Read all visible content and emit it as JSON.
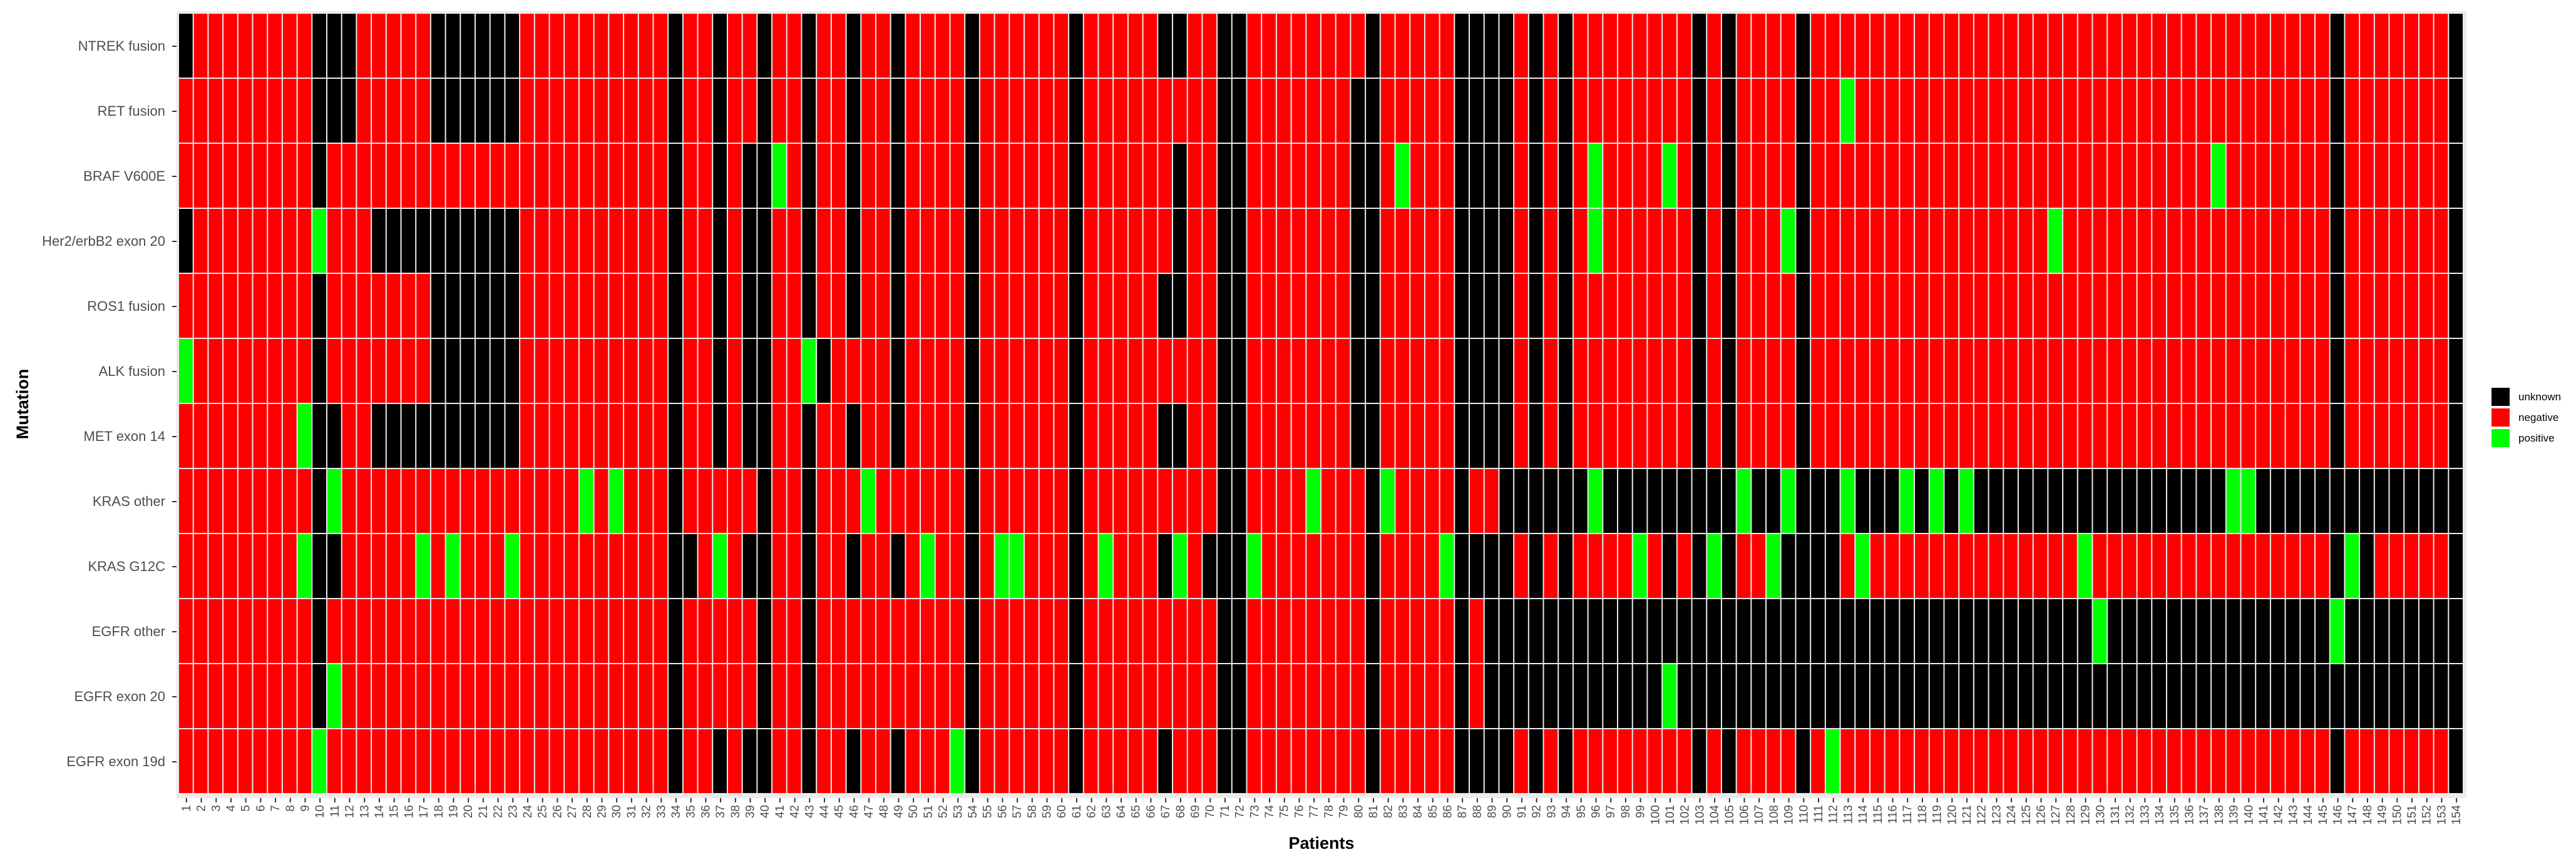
{
  "chart_data": {
    "type": "heatmap",
    "title": "",
    "xlabel": "Patients",
    "ylabel": "Mutation",
    "y_order_top_to_bottom": [
      "NTREK fusion",
      "RET fusion",
      "BRAF V600E",
      "Her2/erbB2 exon 20",
      "ROS1 fusion",
      "ALK fusion",
      "MET exon 14",
      "KRAS other",
      "KRAS  G12C",
      "EGFR other",
      "EGFR exon 20",
      "EGFR exon 19d"
    ],
    "x_categories": [
      "1",
      "2",
      "3",
      "4",
      "5",
      "6",
      "7",
      "8",
      "9",
      "10",
      "11",
      "12",
      "13",
      "14",
      "15",
      "16",
      "17",
      "18",
      "19",
      "20",
      "21",
      "22",
      "23",
      "24",
      "25",
      "26",
      "27",
      "28",
      "29",
      "30",
      "31",
      "32",
      "33",
      "34",
      "35",
      "36",
      "37",
      "38",
      "39",
      "40",
      "41",
      "42",
      "43",
      "44",
      "45",
      "46",
      "47",
      "48",
      "49",
      "50",
      "51",
      "52",
      "53",
      "54",
      "55",
      "56",
      "57",
      "58",
      "59",
      "60",
      "61",
      "62",
      "63",
      "64",
      "65",
      "66",
      "67",
      "68",
      "69",
      "70",
      "71",
      "72",
      "73",
      "74",
      "75",
      "76",
      "77",
      "78",
      "79",
      "80",
      "81",
      "82",
      "83",
      "84",
      "85",
      "86",
      "87",
      "88",
      "89",
      "90",
      "91",
      "92",
      "93",
      "94",
      "95",
      "96",
      "97",
      "98",
      "99",
      "100",
      "101",
      "102",
      "103",
      "104",
      "105",
      "106",
      "107",
      "108",
      "109",
      "110",
      "111",
      "112",
      "113",
      "114",
      "115",
      "116",
      "117",
      "118",
      "119",
      "120",
      "121",
      "122",
      "123",
      "124",
      "125",
      "126",
      "127",
      "128",
      "129",
      "130",
      "131",
      "132",
      "133",
      "134",
      "135",
      "136",
      "137",
      "138",
      "139",
      "140",
      "141",
      "142",
      "143",
      "144",
      "145",
      "146",
      "147",
      "148",
      "149",
      "150",
      "151",
      "152",
      "153",
      "154"
    ],
    "legend": [
      {
        "key": "unknown",
        "label": "unknown",
        "color": "#000000"
      },
      {
        "key": "negative",
        "label": "negative",
        "color": "#ff0000"
      },
      {
        "key": "positive",
        "label": "positive",
        "color": "#00ff00"
      }
    ],
    "legend_position": "right",
    "default_status": "negative",
    "column_unknown_all_rows": [
      10,
      34,
      40,
      43,
      54,
      61,
      71,
      72,
      81,
      87,
      90,
      92,
      94,
      103,
      105,
      110,
      146,
      154
    ],
    "exceptions": {
      "NTREK fusion": {
        "unknown": [
          1,
          11,
          12,
          18,
          19,
          20,
          21,
          22,
          23,
          37,
          46,
          49,
          67,
          68,
          88,
          89,
          90
        ],
        "positive": []
      },
      "RET fusion": {
        "unknown": [
          11,
          12,
          18,
          19,
          20,
          21,
          22,
          23,
          37,
          46,
          49,
          80,
          88,
          89,
          90
        ],
        "positive": [
          113
        ]
      },
      "BRAF V600E": {
        "unknown": [
          37,
          39,
          46,
          49,
          68,
          80,
          88,
          89,
          90
        ],
        "positive": [
          41,
          83,
          96,
          101,
          138
        ]
      },
      "Her2/erbB2 exon 20": {
        "unknown": [
          1,
          14,
          15,
          16,
          17,
          18,
          19,
          20,
          21,
          22,
          23,
          37,
          39,
          46,
          49,
          68,
          80,
          88,
          89
        ],
        "positive": [
          10,
          96,
          109,
          127
        ]
      },
      "ROS1 fusion": {
        "unknown": [
          18,
          19,
          20,
          21,
          22,
          23,
          37,
          39,
          46,
          49,
          67,
          68,
          80,
          88,
          89
        ],
        "positive": []
      },
      "ALK fusion": {
        "unknown": [
          18,
          19,
          20,
          21,
          22,
          23,
          37,
          39,
          44,
          49,
          80,
          88,
          89
        ],
        "positive": [
          1,
          43
        ]
      },
      "MET exon 14": {
        "unknown": [
          11,
          14,
          15,
          16,
          17,
          18,
          19,
          20,
          21,
          22,
          23,
          37,
          39,
          46,
          49,
          67,
          68,
          80,
          88,
          89
        ],
        "positive": [
          9
        ]
      },
      "KRAS other": {
        "unknown": "91-154",
        "positive": [
          11,
          28,
          30,
          47,
          77,
          82,
          96,
          106,
          109,
          113,
          117,
          119,
          121,
          139,
          140
        ]
      },
      "KRAS  G12C": {
        "unknown": [
          11,
          35,
          37,
          39,
          46,
          49,
          67,
          70,
          88,
          89,
          99,
          101,
          108,
          109,
          111,
          112,
          148
        ],
        "positive": [
          9,
          17,
          19,
          23,
          37,
          51,
          56,
          57,
          63,
          68,
          73,
          86,
          99,
          104,
          108,
          114,
          129,
          147
        ]
      },
      "EGFR other": {
        "unknown": "89-154",
        "positive": [
          130,
          146
        ]
      },
      "EGFR exon 20": {
        "unknown": "89-154",
        "positive": [
          11,
          101
        ]
      },
      "EGFR exon 19d": {
        "unknown": [
          37,
          39,
          46,
          49,
          67,
          88,
          89
        ],
        "positive": [
          10,
          53,
          112
        ]
      }
    }
  }
}
